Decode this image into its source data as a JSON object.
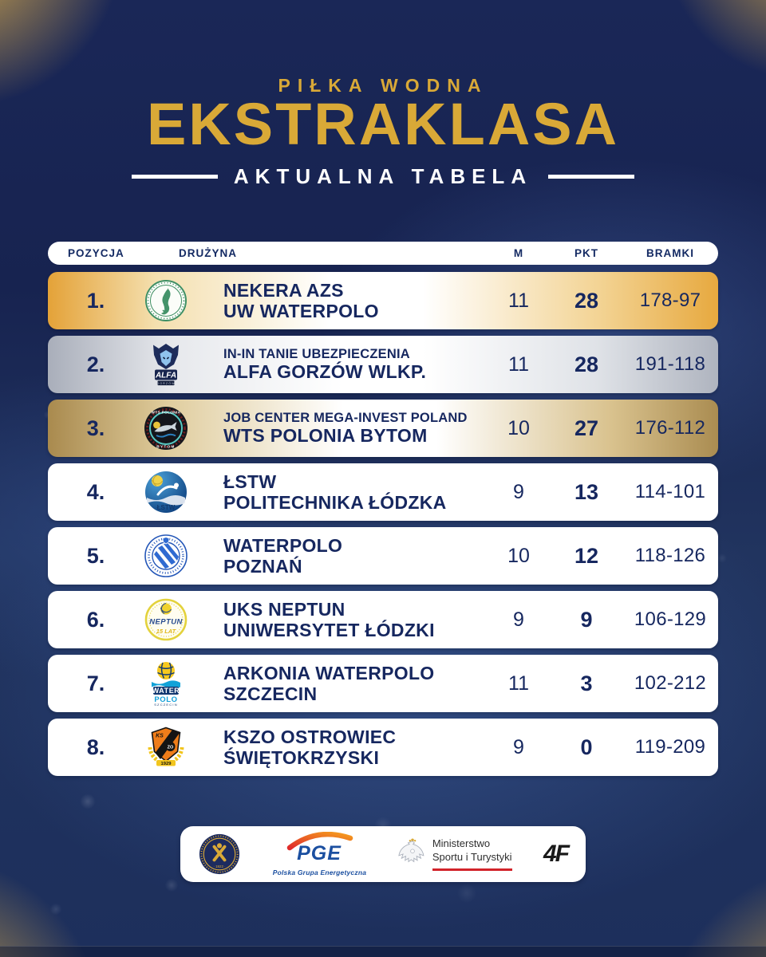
{
  "header": {
    "kicker": "PIŁKA WODNA",
    "title": "EKSTRAKLASA",
    "subtitle": "AKTUALNA TABELA"
  },
  "colors": {
    "gold_accent": "#d9a937",
    "navy_text": "#16275f",
    "background_navy": "#1a2757",
    "row_gold": "#e7a93f",
    "row_silver": "#afb4bf",
    "row_bronze": "#aa8c51"
  },
  "table": {
    "columns": {
      "position": "POZYCJA",
      "team": "DRUŻYNA",
      "matches": "M",
      "points": "PKT",
      "goals": "BRAMKI"
    },
    "rows": [
      {
        "position": "1.",
        "logo": "uw-waterpolo",
        "sponsor_line": false,
        "line1": "NEKERA AZS",
        "line2": "UW WATERPOLO",
        "matches": "11",
        "points": "28",
        "goals": "178-97",
        "highlight": "gold"
      },
      {
        "position": "2.",
        "logo": "alfa-gorzow",
        "sponsor_line": true,
        "line1": "IN-IN TANIE UBEZPIECZENIA",
        "line2": "ALFA GORZÓW WLKP.",
        "matches": "11",
        "points": "28",
        "goals": "191-118",
        "highlight": "silver"
      },
      {
        "position": "3.",
        "logo": "wts-polonia",
        "sponsor_line": true,
        "line1": "JOB CENTER MEGA-INVEST POLAND",
        "line2": "WTS POLONIA BYTOM",
        "matches": "10",
        "points": "27",
        "goals": "176-112",
        "highlight": "bronze"
      },
      {
        "position": "4.",
        "logo": "lstw",
        "sponsor_line": false,
        "line1": "ŁSTW",
        "line2": "POLITECHNIKA ŁÓDZKA",
        "matches": "9",
        "points": "13",
        "goals": "114-101",
        "highlight": "none"
      },
      {
        "position": "5.",
        "logo": "waterpolo-poznan",
        "sponsor_line": false,
        "line1": "WATERPOLO",
        "line2": "POZNAŃ",
        "matches": "10",
        "points": "12",
        "goals": "118-126",
        "highlight": "none"
      },
      {
        "position": "6.",
        "logo": "uks-neptun",
        "sponsor_line": false,
        "line1": "UKS NEPTUN",
        "line2": "UNIWERSYTET ŁÓDZKI",
        "matches": "9",
        "points": "9",
        "goals": "106-129",
        "highlight": "none"
      },
      {
        "position": "7.",
        "logo": "arkonia-szczecin",
        "sponsor_line": false,
        "line1": "ARKONIA WATERPOLO",
        "line2": "SZCZECIN",
        "matches": "11",
        "points": "3",
        "goals": "102-212",
        "highlight": "none"
      },
      {
        "position": "8.",
        "logo": "kszo-ostrowiec",
        "sponsor_line": false,
        "line1": "KSZO OSTROWIEC",
        "line2": "ŚWIĘTOKRZYSKI",
        "matches": "9",
        "points": "0",
        "goals": "119-209",
        "highlight": "none"
      }
    ]
  },
  "logos": {
    "uw-waterpolo": {
      "ring_text": "UNIWERSYTET WARSZAWSKI · WATERPOLO"
    },
    "alfa-gorzow": {
      "word1": "ALFA",
      "word2": "GORZÓW"
    },
    "wts-polonia": {
      "word1": "WTS POLONIA",
      "word2": "BYTOM"
    },
    "lstw": {
      "word1": "ŁSTW"
    },
    "waterpolo-poznan": {
      "ring_text": "KS WATERPOLO POZNAŃ"
    },
    "uks-neptun": {
      "word1": "NEPTUN",
      "word2": "15 LAT"
    },
    "arkonia-szczecin": {
      "word1": "WATER",
      "word2": "POLO",
      "word3": "SZCZECIN"
    },
    "kszo-ostrowiec": {
      "word1": "KS",
      "word2": "ZO",
      "word3": "1929"
    }
  },
  "footer": {
    "sponsors": [
      {
        "id": "pzp",
        "label": "Polski Związek Pływacki",
        "year": "1922"
      },
      {
        "id": "pge",
        "label": "PGE",
        "caption": "Polska Grupa Energetyczna"
      },
      {
        "id": "ministry",
        "line1": "Ministerstwo",
        "line2": "Sportu i Turystyki"
      },
      {
        "id": "fourf",
        "label": "4F"
      }
    ]
  },
  "chart_data": {
    "type": "table",
    "title": "PIŁKA WODNA EKSTRAKLASA — AKTUALNA TABELA",
    "columns": [
      "POZYCJA",
      "DRUŻYNA",
      "M",
      "PKT",
      "BRAMKI"
    ],
    "rows": [
      [
        "1.",
        "NEKERA AZS UW WATERPOLO",
        11,
        28,
        "178-97"
      ],
      [
        "2.",
        "IN-IN TANIE UBEZPIECZENIA ALFA GORZÓW WLKP.",
        11,
        28,
        "191-118"
      ],
      [
        "3.",
        "JOB CENTER MEGA-INVEST POLAND WTS POLONIA BYTOM",
        10,
        27,
        "176-112"
      ],
      [
        "4.",
        "ŁSTW POLITECHNIKA ŁÓDZKA",
        9,
        13,
        "114-101"
      ],
      [
        "5.",
        "WATERPOLO POZNAŃ",
        10,
        12,
        "118-126"
      ],
      [
        "6.",
        "UKS NEPTUN UNIWERSYTET ŁÓDZKI",
        9,
        9,
        "106-129"
      ],
      [
        "7.",
        "ARKONIA WATERPOLO SZCZECIN",
        11,
        3,
        "102-212"
      ],
      [
        "8.",
        "KSZO OSTROWIEC ŚWIĘTOKRZYSKI",
        9,
        0,
        "119-209"
      ]
    ]
  }
}
